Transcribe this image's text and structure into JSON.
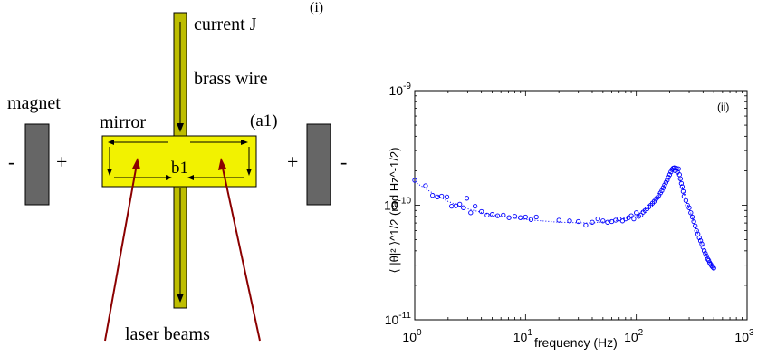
{
  "figure": {
    "panel_i_label": "(i)",
    "panel_ii_label": "(ii)"
  },
  "diagram": {
    "current_label": "current J",
    "wire_label": "brass wire",
    "magnet_label": "magnet",
    "mirror_label": "mirror",
    "a1_label": "(a1)",
    "b1_label": "b1",
    "laser_label": "laser beams",
    "left_minus": "-",
    "left_plus": "+",
    "right_plus": "+",
    "right_minus": "-",
    "colors": {
      "wire": "#bdbd00",
      "mirror": "#f2f200",
      "magnet": "#666666",
      "laser": "#8b0000"
    }
  },
  "chart_data": {
    "type": "scatter",
    "x_scale": "log",
    "y_scale": "log",
    "xlim": [
      1,
      1000
    ],
    "ylim": [
      1e-11,
      1e-09
    ],
    "xlabel": "frequency (Hz)",
    "ylabel": "⟨ |θ|² ⟩^1/2 (rad Hz^-1/2)",
    "x_ticks": [
      "10^0",
      "10^1",
      "10^2",
      "10^3"
    ],
    "y_ticks": [
      "10^-11",
      "10^-10",
      "10^-9"
    ],
    "marker_color": "#0000ff",
    "fit_color": "#0000ff",
    "points": [
      [
        1.0,
        1.65e-10
      ],
      [
        1.25,
        1.48e-10
      ],
      [
        1.45,
        1.22e-10
      ],
      [
        1.6,
        1.18e-10
      ],
      [
        1.75,
        1.2e-10
      ],
      [
        1.95,
        1.18e-10
      ],
      [
        2.15,
        9.8e-11
      ],
      [
        2.35,
        9.9e-11
      ],
      [
        2.55,
        1.02e-10
      ],
      [
        2.75,
        9.5e-11
      ],
      [
        2.95,
        1.15e-10
      ],
      [
        3.2,
        8.6e-11
      ],
      [
        3.5,
        9.8e-11
      ],
      [
        4.0,
        8.8e-11
      ],
      [
        4.5,
        8.2e-11
      ],
      [
        5.0,
        8.3e-11
      ],
      [
        5.6,
        8.1e-11
      ],
      [
        6.3,
        8.2e-11
      ],
      [
        7.1,
        7.8e-11
      ],
      [
        8.0,
        8e-11
      ],
      [
        9.0,
        7.8e-11
      ],
      [
        10.0,
        7.9e-11
      ],
      [
        11.2,
        7.5e-11
      ],
      [
        12.5,
        7.9e-11
      ],
      [
        20,
        7.4e-11
      ],
      [
        25,
        7.3e-11
      ],
      [
        30,
        7.2e-11
      ],
      [
        35,
        6.7e-11
      ],
      [
        40,
        7.1e-11
      ],
      [
        45,
        7.6e-11
      ],
      [
        50,
        7.3e-11
      ],
      [
        55,
        7.1e-11
      ],
      [
        60,
        7.2e-11
      ],
      [
        65,
        7.4e-11
      ],
      [
        70,
        7.6e-11
      ],
      [
        75,
        7.3e-11
      ],
      [
        80,
        7.6e-11
      ],
      [
        85,
        7.8e-11
      ],
      [
        90,
        8.1e-11
      ],
      [
        95,
        7.6e-11
      ],
      [
        100,
        8.6e-11
      ],
      [
        105,
        8e-11
      ],
      [
        110,
        8.2e-11
      ],
      [
        115,
        8.7e-11
      ],
      [
        120,
        9e-11
      ],
      [
        125,
        9.3e-11
      ],
      [
        130,
        9.7e-11
      ],
      [
        135,
        1e-10
      ],
      [
        140,
        1.04e-10
      ],
      [
        145,
        1.08e-10
      ],
      [
        150,
        1.13e-10
      ],
      [
        155,
        1.17e-10
      ],
      [
        160,
        1.22e-10
      ],
      [
        165,
        1.28e-10
      ],
      [
        170,
        1.34e-10
      ],
      [
        175,
        1.42e-10
      ],
      [
        180,
        1.5e-10
      ],
      [
        185,
        1.58e-10
      ],
      [
        190,
        1.66e-10
      ],
      [
        195,
        1.75e-10
      ],
      [
        200,
        1.85e-10
      ],
      [
        205,
        1.95e-10
      ],
      [
        210,
        2.05e-10
      ],
      [
        215,
        2.1e-10
      ],
      [
        220,
        2.12e-10
      ],
      [
        225,
        2e-10
      ],
      [
        230,
        2.1e-10
      ],
      [
        235,
        1.95e-10
      ],
      [
        240,
        2.08e-10
      ],
      [
        245,
        1.85e-10
      ],
      [
        250,
        1.7e-10
      ],
      [
        255,
        1.55e-10
      ],
      [
        260,
        1.45e-10
      ],
      [
        265,
        1.32e-10
      ],
      [
        270,
        1.2e-10
      ],
      [
        280,
        1.1e-10
      ],
      [
        290,
        1e-10
      ],
      [
        300,
        9.5e-11
      ],
      [
        310,
        8.6e-11
      ],
      [
        320,
        7.9e-11
      ],
      [
        330,
        7.2e-11
      ],
      [
        340,
        6.6e-11
      ],
      [
        350,
        6e-11
      ],
      [
        360,
        5.6e-11
      ],
      [
        370,
        5.2e-11
      ],
      [
        380,
        4.9e-11
      ],
      [
        390,
        4.6e-11
      ],
      [
        400,
        4.3e-11
      ],
      [
        410,
        4e-11
      ],
      [
        420,
        3.8e-11
      ],
      [
        430,
        3.6e-11
      ],
      [
        440,
        3.4e-11
      ],
      [
        450,
        3.3e-11
      ],
      [
        460,
        3.15e-11
      ],
      [
        470,
        3.05e-11
      ],
      [
        480,
        2.95e-11
      ],
      [
        490,
        2.88e-11
      ],
      [
        500,
        2.82e-11
      ]
    ],
    "fit": [
      [
        1.0,
        1.6e-10
      ],
      [
        1.5,
        1.25e-10
      ],
      [
        2.0,
        1.08e-10
      ],
      [
        3.0,
        9.3e-11
      ],
      [
        5.0,
        8.2e-11
      ],
      [
        10,
        7.5e-11
      ],
      [
        20,
        7.1e-11
      ],
      [
        40,
        7e-11
      ],
      [
        70,
        7.4e-11
      ],
      [
        100,
        8.2e-11
      ],
      [
        130,
        9.6e-11
      ],
      [
        160,
        1.22e-10
      ],
      [
        190,
        1.66e-10
      ],
      [
        210,
        2e-10
      ],
      [
        222,
        2.1e-10
      ],
      [
        235,
        1.95e-10
      ],
      [
        255,
        1.55e-10
      ],
      [
        280,
        1.1e-10
      ],
      [
        320,
        7.9e-11
      ],
      [
        360,
        5.6e-11
      ],
      [
        400,
        4.3e-11
      ],
      [
        450,
        3.35e-11
      ],
      [
        500,
        2.85e-11
      ]
    ]
  }
}
